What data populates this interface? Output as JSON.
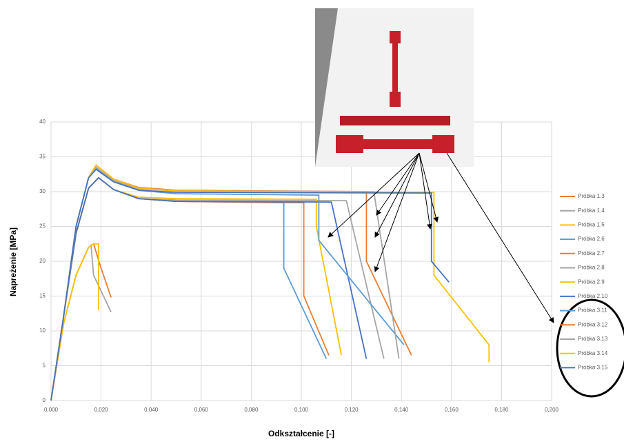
{
  "chart_data": {
    "type": "line",
    "y_label": "Napreżenie [MPa]",
    "x_label": "Odkształcenie [-]",
    "xlim": [
      0,
      0.2
    ],
    "ylim": [
      0,
      40
    ],
    "xticks": [
      {
        "value": 0,
        "label": "0,000"
      },
      {
        "value": 0.02,
        "label": "0,020"
      },
      {
        "value": 0.04,
        "label": "0,040"
      },
      {
        "value": 0.06,
        "label": "0,060"
      },
      {
        "value": 0.08,
        "label": "0,080"
      },
      {
        "value": 0.1,
        "label": "0,100"
      },
      {
        "value": 0.12,
        "label": "0,120"
      },
      {
        "value": 0.14,
        "label": "0,140"
      },
      {
        "value": 0.16,
        "label": "0,160"
      },
      {
        "value": 0.18,
        "label": "0,180"
      },
      {
        "value": 0.2,
        "label": "0,200"
      }
    ],
    "yticks": [
      0,
      5,
      10,
      15,
      20,
      25,
      30,
      35,
      40
    ],
    "grid": true,
    "legend": "right",
    "series": [
      {
        "name": "Próbka 1.3",
        "color": "#ED7D31",
        "x": [
          0,
          0.005,
          0.01,
          0.015,
          0.017,
          0.02,
          0.024
        ],
        "values": [
          0,
          11,
          18,
          22,
          22.5,
          19,
          14.8
        ]
      },
      {
        "name": "Próbka 1.4",
        "color": "#A5A5A5",
        "x": [
          0,
          0.005,
          0.01,
          0.015,
          0.016,
          0.017,
          0.024
        ],
        "values": [
          0,
          11,
          18,
          22,
          22.3,
          18,
          12.7
        ]
      },
      {
        "name": "Próbka 1.5",
        "color": "#FFC000",
        "x": [
          0,
          0.005,
          0.01,
          0.015,
          0.017,
          0.019,
          0.019
        ],
        "values": [
          0,
          11,
          18,
          22,
          22.5,
          22.5,
          13
        ]
      },
      {
        "name": "Próbka 2.6",
        "color": "#5B9BD5",
        "x": [
          0,
          0.005,
          0.01,
          0.015,
          0.019,
          0.025,
          0.035,
          0.05,
          0.093,
          0.093,
          0.11
        ],
        "values": [
          0,
          12,
          24,
          30.5,
          32,
          30.3,
          29,
          28.6,
          28.4,
          19,
          6
        ]
      },
      {
        "name": "Próbka 2.7",
        "color": "#ED7D31",
        "x": [
          0,
          0.005,
          0.01,
          0.015,
          0.019,
          0.025,
          0.035,
          0.05,
          0.101,
          0.101,
          0.111
        ],
        "values": [
          0,
          12,
          24,
          30.5,
          32,
          30.3,
          29,
          28.6,
          28.4,
          15,
          6.5
        ]
      },
      {
        "name": "Próbka 2.8",
        "color": "#A5A5A5",
        "x": [
          0,
          0.005,
          0.01,
          0.015,
          0.019,
          0.025,
          0.035,
          0.05,
          0.118,
          0.133
        ],
        "values": [
          0,
          12,
          24,
          30.5,
          32,
          30.3,
          29,
          28.8,
          28.7,
          6
        ]
      },
      {
        "name": "Próbka 2.9",
        "color": "#FFC000",
        "x": [
          0,
          0.005,
          0.01,
          0.015,
          0.019,
          0.025,
          0.035,
          0.05,
          0.106,
          0.106,
          0.116
        ],
        "values": [
          0,
          12,
          24,
          30.5,
          32,
          30.3,
          29.2,
          29,
          28.9,
          25,
          6.5
        ]
      },
      {
        "name": "Próbka 2.10",
        "color": "#4472C4",
        "x": [
          0,
          0.005,
          0.01,
          0.015,
          0.019,
          0.025,
          0.035,
          0.05,
          0.112,
          0.126
        ],
        "values": [
          0,
          12,
          24,
          30.5,
          32,
          30.3,
          29,
          28.6,
          28.5,
          6
        ]
      },
      {
        "name": "Próbka 3.11",
        "color": "#5B9BD5",
        "x": [
          0,
          0.005,
          0.01,
          0.015,
          0.018,
          0.025,
          0.035,
          0.05,
          0.107,
          0.107,
          0.141
        ],
        "values": [
          0,
          12,
          25,
          32,
          33.3,
          31.5,
          30.2,
          29.7,
          29.5,
          23,
          8
        ]
      },
      {
        "name": "Próbka 3.12",
        "color": "#ED7D31",
        "x": [
          0,
          0.005,
          0.01,
          0.015,
          0.018,
          0.025,
          0.035,
          0.05,
          0.126,
          0.126,
          0.144
        ],
        "values": [
          0,
          12,
          25,
          32,
          33.8,
          31.8,
          30.6,
          30.2,
          30,
          20,
          6.5
        ]
      },
      {
        "name": "Próbka 3.13",
        "color": "#A5A5A5",
        "x": [
          0,
          0.005,
          0.01,
          0.015,
          0.018,
          0.025,
          0.035,
          0.05,
          0.129,
          0.139
        ],
        "values": [
          0,
          12,
          25,
          32,
          33.5,
          31.6,
          30.4,
          30.1,
          30,
          6
        ]
      },
      {
        "name": "Próbka 3.14",
        "color": "#FFC000",
        "x": [
          0,
          0.005,
          0.01,
          0.015,
          0.018,
          0.025,
          0.035,
          0.05,
          0.153,
          0.153,
          0.175,
          0.175
        ],
        "values": [
          0,
          12,
          25,
          32,
          33.8,
          31.8,
          30.5,
          30.1,
          29.9,
          18,
          8,
          5.5
        ]
      },
      {
        "name": "Próbka 3.15",
        "color": "#4472C4",
        "x": [
          0,
          0.005,
          0.01,
          0.015,
          0.018,
          0.025,
          0.035,
          0.05,
          0.152,
          0.152,
          0.159
        ],
        "values": [
          0,
          12,
          25,
          32,
          33.2,
          31.4,
          30.2,
          29.9,
          29.8,
          20,
          17
        ]
      }
    ]
  }
}
